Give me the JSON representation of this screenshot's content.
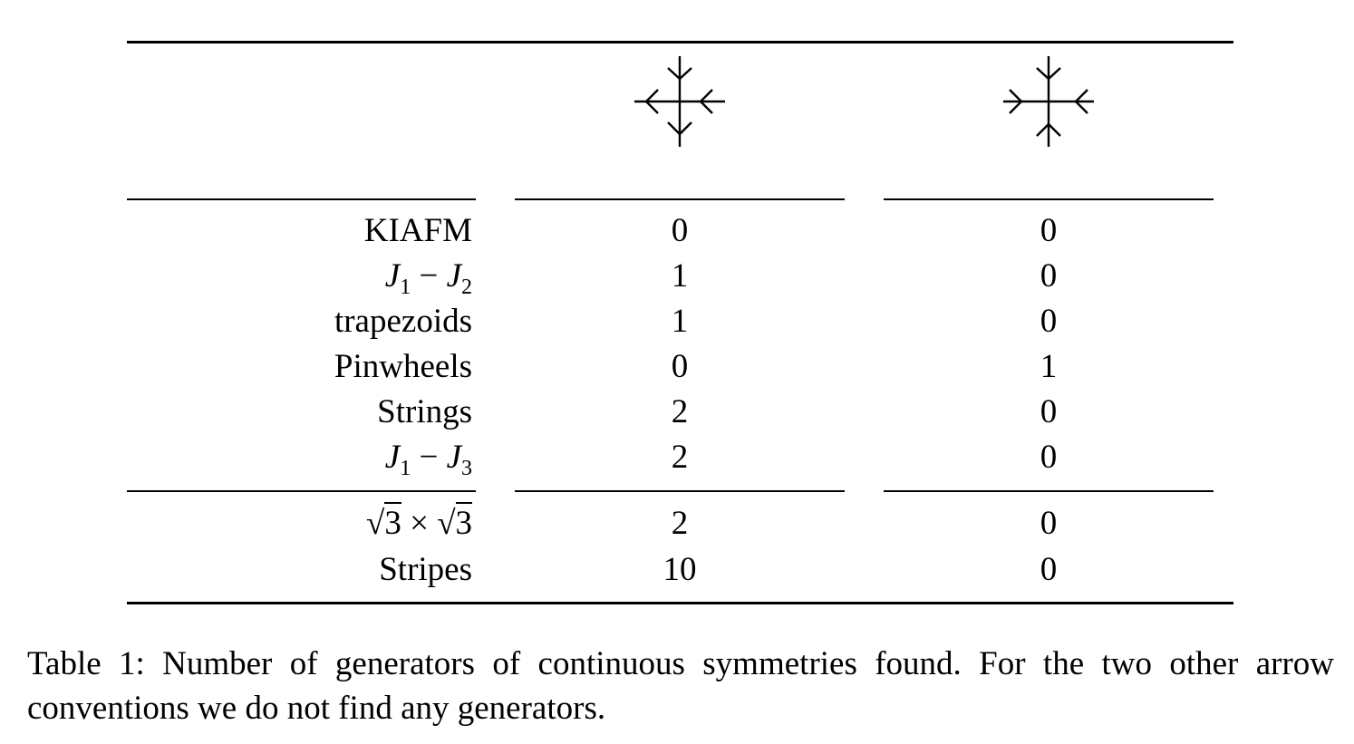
{
  "table": {
    "column_headers": [
      {
        "icon": "arrow-cross-left-left-down-down-icon"
      },
      {
        "icon": "arrow-cross-converging-right-left-down-up-icon"
      }
    ],
    "rows": [
      {
        "label": "KIAFM",
        "values": [
          "0",
          "0"
        ]
      },
      {
        "label": {
          "a": "J",
          "a_sub": "1",
          "op": "−",
          "b": "J",
          "b_sub": "2"
        },
        "values": [
          "1",
          "0"
        ]
      },
      {
        "label": "trapezoids",
        "values": [
          "1",
          "0"
        ]
      },
      {
        "label": "Pinwheels",
        "values": [
          "0",
          "1"
        ]
      },
      {
        "label": "Strings",
        "values": [
          "2",
          "0"
        ]
      },
      {
        "label": {
          "a": "J",
          "a_sub": "1",
          "op": "−",
          "b": "J",
          "b_sub": "3"
        },
        "values": [
          "2",
          "0"
        ]
      },
      {
        "label": {
          "root": "√",
          "a": "3",
          "op": "×",
          "b": "3"
        },
        "values": [
          "2",
          "0"
        ]
      },
      {
        "label": "Stripes",
        "values": [
          "10",
          "0"
        ]
      }
    ]
  },
  "caption": "Table 1: Number of generators of continuous symmetries found. For the two other arrow conventions we do not find any generators."
}
